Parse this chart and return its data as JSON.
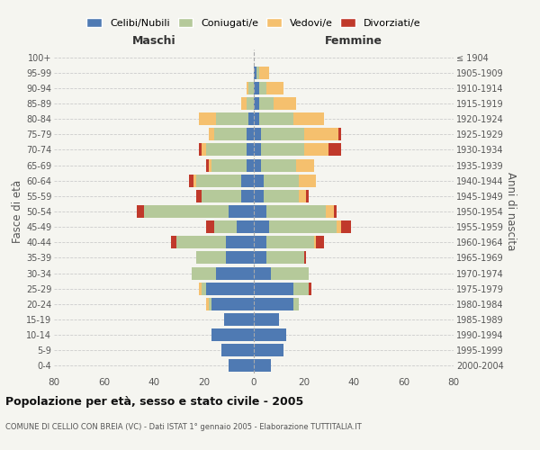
{
  "age_groups": [
    "0-4",
    "5-9",
    "10-14",
    "15-19",
    "20-24",
    "25-29",
    "30-34",
    "35-39",
    "40-44",
    "45-49",
    "50-54",
    "55-59",
    "60-64",
    "65-69",
    "70-74",
    "75-79",
    "80-84",
    "85-89",
    "90-94",
    "95-99",
    "100+"
  ],
  "birth_years": [
    "2000-2004",
    "1995-1999",
    "1990-1994",
    "1985-1989",
    "1980-1984",
    "1975-1979",
    "1970-1974",
    "1965-1969",
    "1960-1964",
    "1955-1959",
    "1950-1954",
    "1945-1949",
    "1940-1944",
    "1935-1939",
    "1930-1934",
    "1925-1929",
    "1920-1924",
    "1915-1919",
    "1910-1914",
    "1905-1909",
    "≤ 1904"
  ],
  "males": {
    "celibi": [
      10,
      13,
      17,
      12,
      17,
      19,
      15,
      11,
      11,
      7,
      10,
      5,
      5,
      3,
      3,
      3,
      2,
      0,
      0,
      0,
      0
    ],
    "coniugati": [
      0,
      0,
      0,
      0,
      1,
      2,
      10,
      12,
      20,
      9,
      34,
      16,
      18,
      14,
      16,
      13,
      13,
      3,
      2,
      0,
      0
    ],
    "vedovi": [
      0,
      0,
      0,
      0,
      1,
      1,
      0,
      0,
      0,
      0,
      0,
      0,
      1,
      1,
      2,
      2,
      7,
      2,
      1,
      0,
      0
    ],
    "divorziati": [
      0,
      0,
      0,
      0,
      0,
      0,
      0,
      0,
      2,
      3,
      3,
      2,
      2,
      1,
      1,
      0,
      0,
      0,
      0,
      0,
      0
    ]
  },
  "females": {
    "nubili": [
      7,
      12,
      13,
      10,
      16,
      16,
      7,
      5,
      5,
      6,
      5,
      4,
      4,
      3,
      3,
      3,
      2,
      2,
      2,
      1,
      0
    ],
    "coniugate": [
      0,
      0,
      0,
      0,
      2,
      6,
      15,
      15,
      19,
      27,
      24,
      14,
      14,
      14,
      17,
      17,
      14,
      6,
      3,
      1,
      0
    ],
    "vedove": [
      0,
      0,
      0,
      0,
      0,
      0,
      0,
      0,
      1,
      2,
      3,
      3,
      7,
      7,
      10,
      14,
      12,
      9,
      7,
      4,
      0
    ],
    "divorziate": [
      0,
      0,
      0,
      0,
      0,
      1,
      0,
      1,
      3,
      4,
      1,
      1,
      0,
      0,
      5,
      1,
      0,
      0,
      0,
      0,
      0
    ]
  },
  "color_celibi": "#4f7ab3",
  "color_coniugati": "#b5c99a",
  "color_vedovi": "#f5c06e",
  "color_divorziati": "#c0392b",
  "title": "Popolazione per età, sesso e stato civile - 2005",
  "subtitle": "COMUNE DI CELLIO CON BREIA (VC) - Dati ISTAT 1° gennaio 2005 - Elaborazione TUTTITALIA.IT",
  "xlabel_left": "Maschi",
  "xlabel_right": "Femmine",
  "ylabel_left": "Fasce di età",
  "ylabel_right": "Anni di nascita",
  "xlim": 80,
  "background_color": "#f5f5f0",
  "plot_bg": "#f5f5f0",
  "grid_color": "#cccccc"
}
